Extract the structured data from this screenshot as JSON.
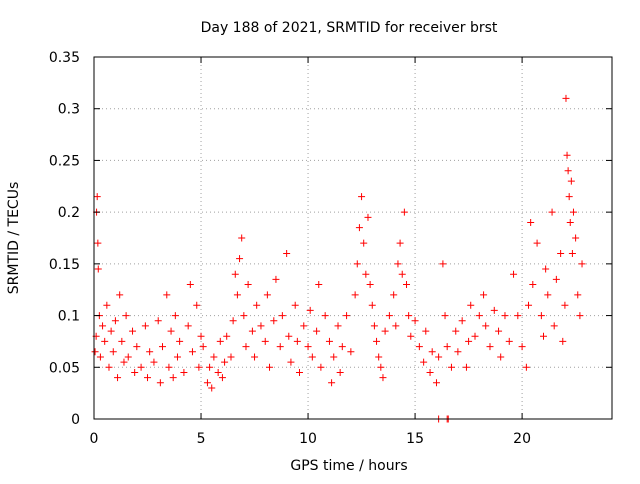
{
  "chart_data": {
    "type": "scatter",
    "title": "Day 188 of 2021, SRMTID for receiver brst",
    "xlabel": "GPS time / hours",
    "ylabel": "SRMTID / TECUs",
    "xlim": [
      0,
      24.2
    ],
    "ylim": [
      0,
      0.35
    ],
    "xticks": [
      0,
      5,
      10,
      15,
      20
    ],
    "xtick_labels": [
      "0",
      "5",
      "10",
      "15",
      "20"
    ],
    "yticks": [
      0,
      0.05,
      0.1,
      0.15,
      0.2,
      0.25,
      0.3,
      0.35
    ],
    "ytick_labels": [
      "0",
      "0.05",
      "0.1",
      "0.15",
      "0.2",
      "0.25",
      "0.3",
      "0.35"
    ],
    "grid": true,
    "marker": "+",
    "color": "#ff0000",
    "axis_color": "#000000",
    "grid_color": "#a0a0a0",
    "series": [
      {
        "name": "SRMTID",
        "points": [
          [
            0.05,
            0.065
          ],
          [
            0.1,
            0.08
          ],
          [
            0.12,
            0.2
          ],
          [
            0.15,
            0.215
          ],
          [
            0.18,
            0.17
          ],
          [
            0.2,
            0.145
          ],
          [
            0.25,
            0.1
          ],
          [
            0.3,
            0.06
          ],
          [
            0.4,
            0.09
          ],
          [
            0.5,
            0.075
          ],
          [
            0.6,
            0.11
          ],
          [
            0.7,
            0.05
          ],
          [
            0.8,
            0.085
          ],
          [
            0.9,
            0.065
          ],
          [
            1.0,
            0.095
          ],
          [
            1.1,
            0.04
          ],
          [
            1.2,
            0.12
          ],
          [
            1.3,
            0.075
          ],
          [
            1.4,
            0.055
          ],
          [
            1.5,
            0.1
          ],
          [
            1.6,
            0.06
          ],
          [
            1.8,
            0.085
          ],
          [
            1.9,
            0.045
          ],
          [
            2.0,
            0.07
          ],
          [
            2.2,
            0.05
          ],
          [
            2.4,
            0.09
          ],
          [
            2.5,
            0.04
          ],
          [
            2.6,
            0.065
          ],
          [
            2.8,
            0.055
          ],
          [
            3.0,
            0.095
          ],
          [
            3.1,
            0.035
          ],
          [
            3.2,
            0.07
          ],
          [
            3.4,
            0.12
          ],
          [
            3.5,
            0.05
          ],
          [
            3.6,
            0.085
          ],
          [
            3.7,
            0.04
          ],
          [
            3.8,
            0.1
          ],
          [
            3.9,
            0.06
          ],
          [
            4.0,
            0.075
          ],
          [
            4.2,
            0.045
          ],
          [
            4.4,
            0.09
          ],
          [
            4.5,
            0.13
          ],
          [
            4.6,
            0.065
          ],
          [
            4.8,
            0.11
          ],
          [
            4.9,
            0.05
          ],
          [
            5.0,
            0.08
          ],
          [
            5.1,
            0.07
          ],
          [
            5.3,
            0.035
          ],
          [
            5.4,
            0.05
          ],
          [
            5.5,
            0.03
          ],
          [
            5.6,
            0.06
          ],
          [
            5.8,
            0.045
          ],
          [
            5.9,
            0.075
          ],
          [
            6.0,
            0.04
          ],
          [
            6.1,
            0.055
          ],
          [
            6.2,
            0.08
          ],
          [
            6.4,
            0.06
          ],
          [
            6.5,
            0.095
          ],
          [
            6.6,
            0.14
          ],
          [
            6.7,
            0.12
          ],
          [
            6.8,
            0.155
          ],
          [
            6.9,
            0.175
          ],
          [
            7.0,
            0.1
          ],
          [
            7.1,
            0.07
          ],
          [
            7.2,
            0.13
          ],
          [
            7.4,
            0.085
          ],
          [
            7.5,
            0.06
          ],
          [
            7.6,
            0.11
          ],
          [
            7.8,
            0.09
          ],
          [
            8.0,
            0.075
          ],
          [
            8.1,
            0.12
          ],
          [
            8.2,
            0.05
          ],
          [
            8.4,
            0.095
          ],
          [
            8.5,
            0.135
          ],
          [
            8.7,
            0.07
          ],
          [
            8.8,
            0.1
          ],
          [
            9.0,
            0.16
          ],
          [
            9.1,
            0.08
          ],
          [
            9.2,
            0.055
          ],
          [
            9.4,
            0.11
          ],
          [
            9.5,
            0.075
          ],
          [
            9.6,
            0.045
          ],
          [
            9.8,
            0.09
          ],
          [
            10.0,
            0.07
          ],
          [
            10.1,
            0.105
          ],
          [
            10.2,
            0.06
          ],
          [
            10.4,
            0.085
          ],
          [
            10.5,
            0.13
          ],
          [
            10.6,
            0.05
          ],
          [
            10.8,
            0.1
          ],
          [
            11.0,
            0.075
          ],
          [
            11.1,
            0.035
          ],
          [
            11.2,
            0.06
          ],
          [
            11.4,
            0.09
          ],
          [
            11.5,
            0.045
          ],
          [
            11.6,
            0.07
          ],
          [
            11.8,
            0.1
          ],
          [
            12.0,
            0.065
          ],
          [
            12.2,
            0.12
          ],
          [
            12.3,
            0.15
          ],
          [
            12.4,
            0.185
          ],
          [
            12.5,
            0.215
          ],
          [
            12.6,
            0.17
          ],
          [
            12.7,
            0.14
          ],
          [
            12.8,
            0.195
          ],
          [
            12.9,
            0.13
          ],
          [
            13.0,
            0.11
          ],
          [
            13.1,
            0.09
          ],
          [
            13.2,
            0.075
          ],
          [
            13.3,
            0.06
          ],
          [
            13.4,
            0.05
          ],
          [
            13.5,
            0.04
          ],
          [
            13.6,
            0.085
          ],
          [
            13.8,
            0.1
          ],
          [
            14.0,
            0.12
          ],
          [
            14.1,
            0.09
          ],
          [
            14.2,
            0.15
          ],
          [
            14.3,
            0.17
          ],
          [
            14.4,
            0.14
          ],
          [
            14.5,
            0.2
          ],
          [
            14.6,
            0.13
          ],
          [
            14.7,
            0.1
          ],
          [
            14.8,
            0.08
          ],
          [
            15.0,
            0.095
          ],
          [
            15.2,
            0.07
          ],
          [
            15.4,
            0.055
          ],
          [
            15.5,
            0.085
          ],
          [
            15.7,
            0.045
          ],
          [
            15.8,
            0.065
          ],
          [
            16.0,
            0.035
          ],
          [
            16.1,
            0.06
          ],
          [
            16.3,
            0.15
          ],
          [
            16.4,
            0.1
          ],
          [
            16.5,
            0.07
          ],
          [
            16.7,
            0.05
          ],
          [
            16.9,
            0.085
          ],
          [
            17.0,
            0.065
          ],
          [
            17.2,
            0.095
          ],
          [
            17.4,
            0.05
          ],
          [
            17.5,
            0.075
          ],
          [
            17.6,
            0.11
          ],
          [
            17.8,
            0.08
          ],
          [
            18.0,
            0.1
          ],
          [
            18.2,
            0.12
          ],
          [
            18.3,
            0.09
          ],
          [
            18.5,
            0.07
          ],
          [
            18.7,
            0.105
          ],
          [
            18.9,
            0.085
          ],
          [
            19.0,
            0.06
          ],
          [
            19.2,
            0.1
          ],
          [
            19.4,
            0.075
          ],
          [
            19.6,
            0.14
          ],
          [
            19.8,
            0.1
          ],
          [
            20.0,
            0.07
          ],
          [
            20.2,
            0.05
          ],
          [
            20.3,
            0.11
          ],
          [
            20.4,
            0.19
          ],
          [
            20.5,
            0.13
          ],
          [
            20.7,
            0.17
          ],
          [
            20.9,
            0.1
          ],
          [
            21.0,
            0.08
          ],
          [
            21.1,
            0.145
          ],
          [
            21.2,
            0.12
          ],
          [
            21.4,
            0.2
          ],
          [
            21.5,
            0.09
          ],
          [
            21.6,
            0.135
          ],
          [
            21.8,
            0.16
          ],
          [
            21.9,
            0.075
          ],
          [
            22.0,
            0.11
          ],
          [
            22.05,
            0.31
          ],
          [
            22.1,
            0.255
          ],
          [
            22.15,
            0.24
          ],
          [
            22.2,
            0.215
          ],
          [
            22.25,
            0.19
          ],
          [
            22.3,
            0.23
          ],
          [
            22.35,
            0.16
          ],
          [
            22.4,
            0.2
          ],
          [
            22.5,
            0.175
          ],
          [
            22.6,
            0.12
          ],
          [
            22.7,
            0.1
          ],
          [
            22.8,
            0.15
          ],
          [
            16.1,
            0.0
          ],
          [
            16.5,
            0.0
          ],
          [
            16.55,
            0.0
          ]
        ]
      }
    ]
  }
}
